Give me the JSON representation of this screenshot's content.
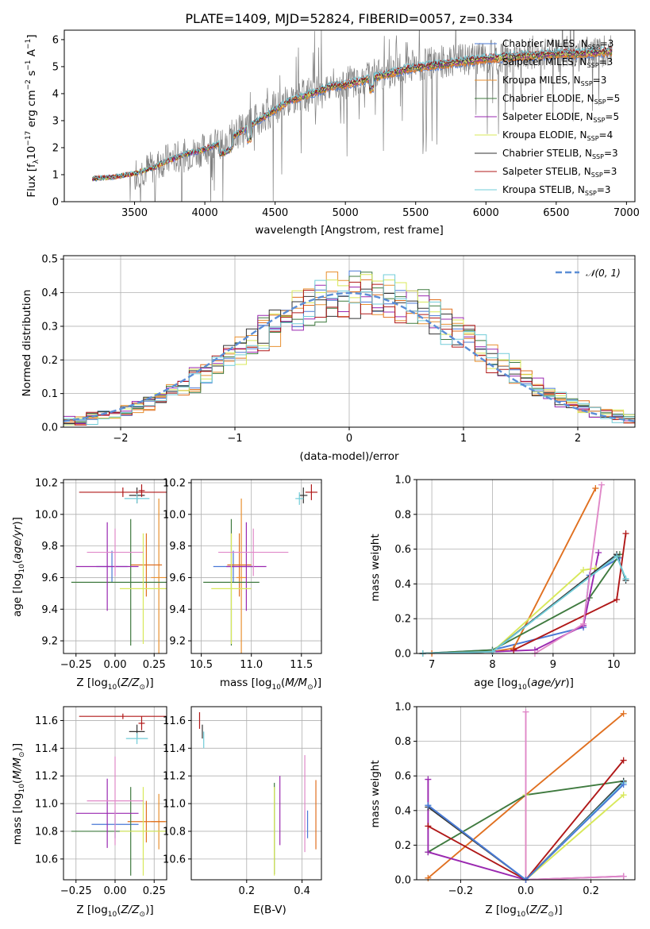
{
  "figure": {
    "background": "#ffffff"
  },
  "models": [
    {
      "name": "Chabrier MILES",
      "nssp": "3",
      "color": "#4a78d6"
    },
    {
      "name": "Salpeter MILES",
      "nssp": "3",
      "color": "#e07020"
    },
    {
      "name": "Kroupa MILES",
      "nssp": "3",
      "color": "#e89030"
    },
    {
      "name": "Chabrier ELODIE",
      "nssp": "5",
      "color": "#3f7a3f"
    },
    {
      "name": "Salpeter ELODIE",
      "nssp": "5",
      "color": "#9a28b0"
    },
    {
      "name": "Kroupa ELODIE",
      "nssp": "4",
      "color": "#d8e85a"
    },
    {
      "name": "Chabrier STELIB",
      "nssp": "3",
      "color": "#333333"
    },
    {
      "name": "Salpeter STELIB",
      "nssp": "3",
      "color": "#b01818"
    },
    {
      "name": "Kroupa STELIB",
      "nssp": "3",
      "color": "#70ccd8"
    }
  ],
  "chart_data": [
    {
      "id": "spectrum",
      "type": "line",
      "title": "PLATE=1409, MJD=52824, FIBERID=0057, z=0.334",
      "xlabel": "wavelength [Angstrom, rest frame]",
      "ylabel": "Flux [f_λ10^-17 erg cm^-2 s^-1 A^-1]",
      "xlim": [
        3000,
        7060
      ],
      "ylim": [
        0,
        6.35
      ],
      "xticks": [
        3500,
        4000,
        4500,
        5000,
        5500,
        6000,
        6500,
        7000
      ],
      "yticks": [
        0,
        1,
        2,
        3,
        4,
        5,
        6
      ],
      "data_color": "#808080",
      "data_x": [
        3200,
        3400,
        3500,
        3650,
        3700,
        3850,
        4000,
        4150,
        4300,
        4450,
        4600,
        4750,
        4900,
        5000,
        5150,
        5300,
        5450,
        5600,
        5750,
        5900,
        6050,
        6200,
        6350,
        6500,
        6650,
        6800,
        6900
      ],
      "data_y": [
        0.9,
        0.95,
        1.1,
        1.3,
        1.5,
        1.7,
        1.95,
        2.3,
        2.8,
        3.3,
        3.8,
        4.0,
        4.3,
        4.4,
        4.6,
        4.8,
        5.0,
        5.1,
        5.2,
        5.3,
        5.4,
        5.4,
        5.5,
        5.5,
        5.55,
        5.6,
        5.6
      ],
      "model_x": [
        3200,
        3400,
        3500,
        3650,
        3700,
        3850,
        4000,
        4150,
        4300,
        4450,
        4600,
        4750,
        4900,
        5000,
        5150,
        5300,
        5450,
        5600,
        5750,
        5900,
        6050,
        6200,
        6350,
        6500,
        6650,
        6800,
        6900
      ],
      "model_y": [
        0.85,
        0.95,
        1.05,
        1.3,
        1.45,
        1.75,
        1.95,
        2.25,
        2.75,
        3.25,
        3.75,
        4.0,
        4.3,
        4.35,
        4.55,
        4.75,
        4.95,
        5.05,
        5.15,
        5.25,
        5.35,
        5.4,
        5.45,
        5.5,
        5.5,
        5.55,
        5.6
      ],
      "legend_placement": "upper right",
      "legend_ssp_label": "N",
      "legend_ssp_sub": "SSP"
    },
    {
      "id": "residuals",
      "type": "histogram",
      "xlabel": "(data-model)/error",
      "ylabel": "Normed distribution",
      "xlim": [
        -2.5,
        2.5
      ],
      "ylim": [
        0,
        0.51
      ],
      "xticks": [
        -2,
        -1,
        0,
        1,
        2
      ],
      "yticks": [
        0,
        0.1,
        0.2,
        0.3,
        0.4,
        0.5
      ],
      "bin_width": 0.1,
      "gaussian_label": "𝒩(0, 1)",
      "gaussian_color": "#5b8ed6",
      "legend_placement": "upper right",
      "grid": true
    },
    {
      "id": "age_vs_Z",
      "type": "errorbar",
      "xlabel": "Z [log10(Z/Z☉)]",
      "ylabel": "age  [log10(age/yr)]",
      "xlim": [
        -0.33,
        0.33
      ],
      "ylim": [
        9.12,
        10.22
      ],
      "xticks": [
        -0.25,
        0.0,
        0.25
      ],
      "yticks": [
        9.2,
        9.4,
        9.6,
        9.8,
        10.0,
        10.2
      ],
      "points": [
        {
          "x": -0.02,
          "y": 9.67,
          "xerr": 0.1,
          "yerr": 0.1,
          "color": "#4a78d6"
        },
        {
          "x": 0.28,
          "y": 9.6,
          "xerr": 0.05,
          "yerr": 0.5,
          "color": "#e89030"
        },
        {
          "x": 0.2,
          "y": 9.68,
          "xerr": 0.1,
          "yerr": 0.2,
          "color": "#e07020"
        },
        {
          "x": 0.1,
          "y": 9.57,
          "xerr": 0.38,
          "yerr": 0.4,
          "color": "#3f7a3f"
        },
        {
          "x": -0.05,
          "y": 9.67,
          "xerr": 0.2,
          "yerr": 0.28,
          "color": "#9a28b0"
        },
        {
          "x": 0.18,
          "y": 9.53,
          "xerr": 0.15,
          "yerr": 0.35,
          "color": "#d8e85a"
        },
        {
          "x": 0.14,
          "y": 10.12,
          "xerr": 0.05,
          "yerr": 0.05,
          "color": "#333333"
        },
        {
          "x": 0.05,
          "y": 10.14,
          "xerr": 0.28,
          "yerr": 0.03,
          "color": "#b01818"
        },
        {
          "x": 0.14,
          "y": 10.1,
          "xerr": 0.08,
          "yerr": 0.03,
          "color": "#70ccd8"
        },
        {
          "x": 0.0,
          "y": 9.76,
          "xerr": 0.18,
          "yerr": 0.15,
          "color": "#e088c8"
        },
        {
          "x": 0.17,
          "y": 10.15,
          "xerr": 0.02,
          "yerr": 0.04,
          "color": "#b01818"
        }
      ]
    },
    {
      "id": "age_vs_mass",
      "type": "errorbar",
      "xlabel": "mass [log10(M/M☉)]",
      "xlim": [
        10.4,
        11.7
      ],
      "ylim": [
        9.12,
        10.22
      ],
      "xticks": [
        10.5,
        11.0,
        11.5
      ],
      "yticks": [
        9.2,
        9.4,
        9.6,
        9.8,
        10.0,
        10.2
      ],
      "points": [
        {
          "x": 10.82,
          "y": 9.67,
          "xerr": 0.2,
          "yerr": 0.1,
          "color": "#4a78d6"
        },
        {
          "x": 10.88,
          "y": 9.68,
          "xerr": 0.12,
          "yerr": 0.2,
          "color": "#e07020"
        },
        {
          "x": 10.9,
          "y": 9.6,
          "xerr": 0.05,
          "yerr": 0.5,
          "color": "#e89030"
        },
        {
          "x": 10.8,
          "y": 9.57,
          "xerr": 0.28,
          "yerr": 0.4,
          "color": "#3f7a3f"
        },
        {
          "x": 10.95,
          "y": 9.67,
          "xerr": 0.2,
          "yerr": 0.28,
          "color": "#9a28b0"
        },
        {
          "x": 10.8,
          "y": 9.53,
          "xerr": 0.2,
          "yerr": 0.35,
          "color": "#d8e85a"
        },
        {
          "x": 11.52,
          "y": 10.12,
          "xerr": 0.04,
          "yerr": 0.05,
          "color": "#333333"
        },
        {
          "x": 11.6,
          "y": 10.14,
          "xerr": 0.06,
          "yerr": 0.05,
          "color": "#b01818"
        },
        {
          "x": 11.48,
          "y": 10.1,
          "xerr": 0.04,
          "yerr": 0.04,
          "color": "#70ccd8"
        },
        {
          "x": 11.02,
          "y": 9.76,
          "xerr": 0.35,
          "yerr": 0.15,
          "color": "#e088c8"
        }
      ]
    },
    {
      "id": "weight_vs_age",
      "type": "line",
      "xlabel": "age  [log10(age/yr)]",
      "ylabel": "mass weight",
      "xlim": [
        6.75,
        10.35
      ],
      "ylim": [
        0,
        1.0
      ],
      "xticks": [
        7,
        8,
        9,
        10
      ],
      "yticks": [
        0,
        0.2,
        0.4,
        0.6,
        0.8,
        1.0
      ],
      "series": [
        {
          "color": "#4a78d6",
          "x": [
            6.85,
            8.0,
            9.5,
            9.6,
            10.1
          ],
          "y": [
            0.0,
            0.02,
            0.15,
            0.45,
            0.55
          ]
        },
        {
          "color": "#e07020",
          "x": [
            7.0,
            8.0,
            8.35,
            9.7
          ],
          "y": [
            0.0,
            0.01,
            0.03,
            0.95
          ]
        },
        {
          "color": "#3f7a3f",
          "x": [
            6.85,
            8.0,
            9.6,
            10.1
          ],
          "y": [
            0.0,
            0.02,
            0.32,
            0.57
          ]
        },
        {
          "color": "#9a28b0",
          "x": [
            6.85,
            8.0,
            8.7,
            9.5,
            9.75
          ],
          "y": [
            0.0,
            0.01,
            0.02,
            0.16,
            0.58
          ]
        },
        {
          "color": "#d8e85a",
          "x": [
            6.85,
            8.0,
            9.5,
            9.7
          ],
          "y": [
            0.0,
            0.01,
            0.48,
            0.49
          ]
        },
        {
          "color": "#333333",
          "x": [
            6.85,
            8.0,
            10.05,
            10.2
          ],
          "y": [
            0.0,
            0.01,
            0.57,
            0.42
          ]
        },
        {
          "color": "#b01818",
          "x": [
            8.35,
            10.05,
            10.2
          ],
          "y": [
            0.02,
            0.31,
            0.69
          ]
        },
        {
          "color": "#70ccd8",
          "x": [
            6.85,
            8.0,
            10.05,
            10.2
          ],
          "y": [
            0.0,
            0.01,
            0.56,
            0.43
          ]
        },
        {
          "color": "#e088c8",
          "x": [
            8.7,
            9.5,
            9.8
          ],
          "y": [
            0.0,
            0.17,
            0.97
          ]
        }
      ]
    },
    {
      "id": "mass_vs_Z",
      "type": "errorbar",
      "xlabel": "Z [log10(Z/Z☉)]",
      "ylabel": "mass [log10(M/M☉)]",
      "xlim": [
        -0.33,
        0.33
      ],
      "ylim": [
        10.45,
        11.7
      ],
      "xticks": [
        -0.25,
        0.0,
        0.25
      ],
      "yticks": [
        10.6,
        10.8,
        11.0,
        11.2,
        11.4,
        11.6
      ],
      "points": [
        {
          "x": 0.0,
          "y": 10.85,
          "xerr": 0.15,
          "yerr": 0.1,
          "color": "#4a78d6"
        },
        {
          "x": 0.28,
          "y": 10.87,
          "xerr": 0.05,
          "yerr": 0.2,
          "color": "#e89030"
        },
        {
          "x": 0.2,
          "y": 10.87,
          "xerr": 0.12,
          "yerr": 0.15,
          "color": "#e07020"
        },
        {
          "x": 0.1,
          "y": 10.8,
          "xerr": 0.38,
          "yerr": 0.32,
          "color": "#3f7a3f"
        },
        {
          "x": -0.05,
          "y": 10.93,
          "xerr": 0.2,
          "yerr": 0.25,
          "color": "#9a28b0"
        },
        {
          "x": 0.18,
          "y": 10.8,
          "xerr": 0.15,
          "yerr": 0.32,
          "color": "#d8e85a"
        },
        {
          "x": 0.14,
          "y": 11.52,
          "xerr": 0.05,
          "yerr": 0.05,
          "color": "#333333"
        },
        {
          "x": 0.05,
          "y": 11.63,
          "xerr": 0.28,
          "yerr": 0.02,
          "color": "#b01818"
        },
        {
          "x": 0.14,
          "y": 11.47,
          "xerr": 0.07,
          "yerr": 0.04,
          "color": "#70ccd8"
        },
        {
          "x": 0.0,
          "y": 11.02,
          "xerr": 0.18,
          "yerr": 0.32,
          "color": "#e088c8"
        },
        {
          "x": 0.17,
          "y": 11.58,
          "xerr": 0.02,
          "yerr": 0.05,
          "color": "#b01818"
        }
      ]
    },
    {
      "id": "mass_vs_ebv",
      "type": "errorbar",
      "xlabel": "E(B-V)",
      "xlim": [
        0.0,
        0.47
      ],
      "ylim": [
        10.45,
        11.7
      ],
      "xticks": [
        0.2,
        0.4
      ],
      "yticks": [
        10.6,
        10.8,
        11.0,
        11.2,
        11.4,
        11.6
      ],
      "points": [
        {
          "x": 0.3,
          "y": 10.82,
          "xerr": 0,
          "yerr": 0.33,
          "color": "#3f7a3f"
        },
        {
          "x": 0.3,
          "y": 10.8,
          "xerr": 0,
          "yerr": 0.32,
          "color": "#d8e85a"
        },
        {
          "x": 0.32,
          "y": 10.95,
          "xerr": 0,
          "yerr": 0.25,
          "color": "#9a28b0"
        },
        {
          "x": 0.41,
          "y": 11.0,
          "xerr": 0,
          "yerr": 0.35,
          "color": "#e088c8"
        },
        {
          "x": 0.42,
          "y": 10.85,
          "xerr": 0,
          "yerr": 0.1,
          "color": "#4a78d6"
        },
        {
          "x": 0.45,
          "y": 10.92,
          "xerr": 0,
          "yerr": 0.25,
          "color": "#e07020"
        },
        {
          "x": 0.03,
          "y": 11.6,
          "xerr": 0,
          "yerr": 0.06,
          "color": "#b01818"
        },
        {
          "x": 0.04,
          "y": 11.52,
          "xerr": 0,
          "yerr": 0.05,
          "color": "#333333"
        },
        {
          "x": 0.045,
          "y": 11.46,
          "xerr": 0,
          "yerr": 0.06,
          "color": "#70ccd8"
        }
      ]
    },
    {
      "id": "weight_vs_Z",
      "type": "line",
      "xlabel": "Z [log10(Z/Z☉)]",
      "ylabel": "mass weight",
      "xlim": [
        -0.335,
        0.335
      ],
      "ylim": [
        0,
        1.0
      ],
      "xticks": [
        -0.2,
        0.0,
        0.2
      ],
      "yticks": [
        0,
        0.2,
        0.4,
        0.6,
        0.8,
        1.0
      ],
      "series": [
        {
          "color": "#e07020",
          "x": [
            -0.3,
            0.0,
            0.3
          ],
          "y": [
            0.01,
            0.49,
            0.96
          ]
        },
        {
          "color": "#3f7a3f",
          "x": [
            -0.3,
            0.0,
            0.3
          ],
          "y": [
            0.16,
            0.49,
            0.57
          ]
        },
        {
          "color": "#9a28b0",
          "x": [
            -0.3,
            -0.3,
            0.0,
            0.3
          ],
          "y": [
            0.58,
            0.16,
            0.0,
            0.02
          ]
        },
        {
          "color": "#d8e85a",
          "x": [
            0.0,
            0.0,
            0.3
          ],
          "y": [
            0.49,
            0.0,
            0.49
          ]
        },
        {
          "color": "#333333",
          "x": [
            -0.3,
            0.0,
            0.3
          ],
          "y": [
            0.42,
            0.0,
            0.57
          ]
        },
        {
          "color": "#b01818",
          "x": [
            -0.3,
            0.0,
            0.3
          ],
          "y": [
            0.31,
            0.0,
            0.69
          ]
        },
        {
          "color": "#70ccd8",
          "x": [
            -0.3,
            0.0,
            0.3
          ],
          "y": [
            0.43,
            0.0,
            0.56
          ]
        },
        {
          "color": "#e088c8",
          "x": [
            0.0,
            0.0,
            0.3
          ],
          "y": [
            0.97,
            0.0,
            0.02
          ]
        },
        {
          "color": "#4a78d6",
          "x": [
            -0.3,
            0.0,
            0.3
          ],
          "y": [
            0.43,
            0.0,
            0.55
          ]
        }
      ]
    }
  ]
}
